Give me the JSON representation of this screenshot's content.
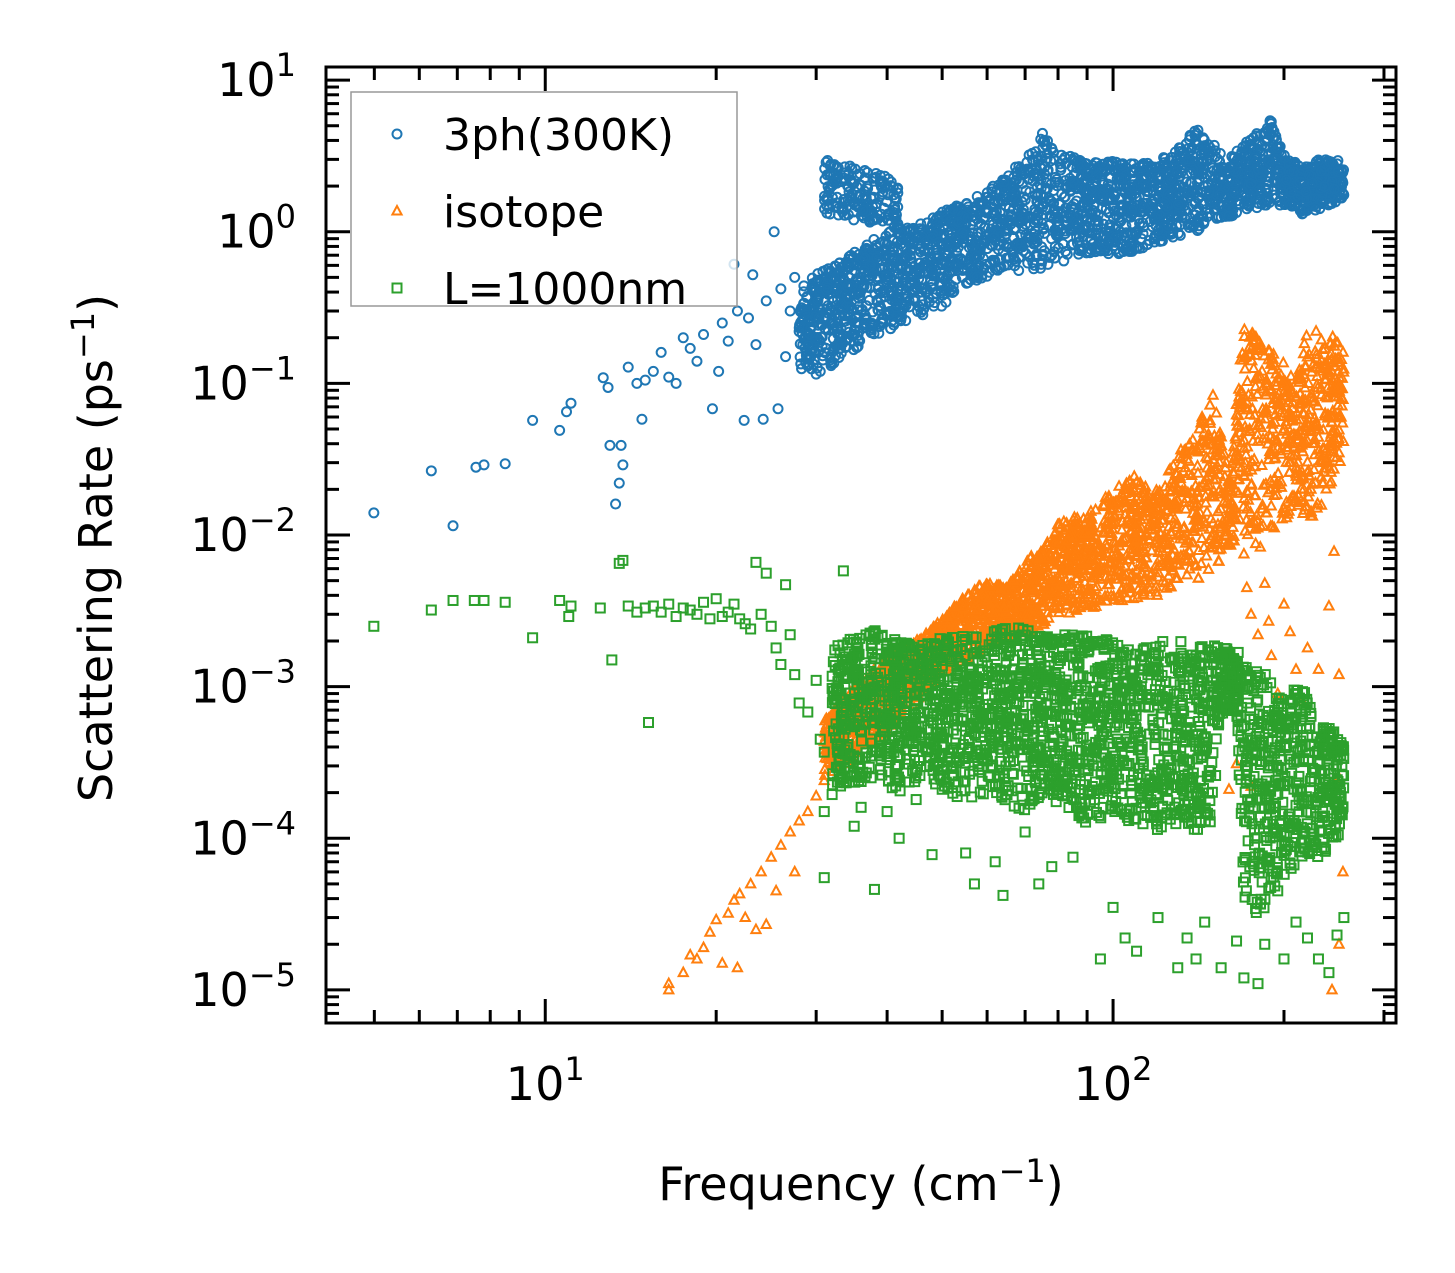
{
  "chart_data": {
    "type": "scatter",
    "title": "",
    "xlabel": "Frequency (cm",
    "xlabel_sup": "−1",
    "xlabel_end": ")",
    "ylabel": "Scattering Rate (ps",
    "ylabel_sup": "−1",
    "ylabel_end": ")",
    "xscale": "log",
    "yscale": "log",
    "xlim": [
      4.11,
      315
    ],
    "ylim": [
      6.05e-06,
      12.2
    ],
    "grid": false,
    "tick_direction": "in",
    "x_major_ticks": [
      {
        "value": 10,
        "base": "10",
        "exp": "1"
      },
      {
        "value": 100,
        "base": "10",
        "exp": "2"
      }
    ],
    "y_major_ticks": [
      {
        "value": 10,
        "base": "10",
        "exp": "1"
      },
      {
        "value": 1,
        "base": "10",
        "exp": "0"
      },
      {
        "value": 0.1,
        "base": "10",
        "exp": "−1"
      },
      {
        "value": 0.01,
        "base": "10",
        "exp": "−2"
      },
      {
        "value": 0.001,
        "base": "10",
        "exp": "−3"
      },
      {
        "value": 0.0001,
        "base": "10",
        "exp": "−4"
      },
      {
        "value": 1e-05,
        "base": "10",
        "exp": "−5"
      }
    ],
    "legend": {
      "placement": "top-left",
      "entries": [
        {
          "label": "3ph(300K)",
          "marker": "circle",
          "color": "#1f77b4"
        },
        {
          "label": "isotope",
          "marker": "triangle",
          "color": "#ff7f0e"
        },
        {
          "label": "L=1000nm",
          "marker": "square",
          "color": "#2ca02c"
        }
      ]
    },
    "series": [
      {
        "name": "3ph(300K)",
        "marker": "circle",
        "color": "#1f77b4",
        "points": [
          [
            4.99,
            0.014
          ],
          [
            6.3,
            0.0265
          ],
          [
            6.88,
            0.0115
          ],
          [
            7.55,
            0.028
          ],
          [
            7.8,
            0.029
          ],
          [
            8.5,
            0.0295
          ],
          [
            9.5,
            0.057
          ],
          [
            10.6,
            0.049
          ],
          [
            10.9,
            0.065
          ],
          [
            11.1,
            0.074
          ],
          [
            12.65,
            0.109
          ],
          [
            12.9,
            0.094
          ],
          [
            14.0,
            0.128
          ],
          [
            13.0,
            0.039
          ],
          [
            13.6,
            0.039
          ],
          [
            13.7,
            0.029
          ],
          [
            13.5,
            0.022
          ],
          [
            13.3,
            0.016
          ],
          [
            14.8,
            0.058
          ],
          [
            15.5,
            0.12
          ],
          [
            16.0,
            0.16
          ],
          [
            14.5,
            0.1
          ],
          [
            15.0,
            0.105
          ],
          [
            16.5,
            0.11
          ],
          [
            17.0,
            0.1
          ],
          [
            17.5,
            0.2
          ],
          [
            18.0,
            0.17
          ],
          [
            18.5,
            0.14
          ],
          [
            19.0,
            0.21
          ],
          [
            19.7,
            0.068
          ],
          [
            20.2,
            0.12
          ],
          [
            20.5,
            0.25
          ],
          [
            21.0,
            0.19
          ],
          [
            21.5,
            0.61
          ],
          [
            21.8,
            0.3
          ],
          [
            22.4,
            0.057
          ],
          [
            22.8,
            0.27
          ],
          [
            23.2,
            0.52
          ],
          [
            23.5,
            0.18
          ],
          [
            24.2,
            0.058
          ],
          [
            24.5,
            0.35
          ],
          [
            25.3,
            1.0
          ],
          [
            25.7,
            0.068
          ],
          [
            26.0,
            0.42
          ],
          [
            26.5,
            0.15
          ],
          [
            27.0,
            0.3
          ],
          [
            27.5,
            0.5
          ],
          [
            28.0,
            0.22
          ],
          [
            29.0,
            0.13
          ],
          [
            30.0,
            0.115
          ],
          [
            30.5,
            0.12
          ],
          [
            31.0,
            0.35
          ],
          [
            32.0,
            0.26
          ]
        ],
        "band_envelope": {
          "x": [
            28,
            32,
            36,
            40,
            45,
            50,
            55,
            60,
            65,
            70,
            75,
            80,
            90,
            100,
            110,
            120,
            130,
            140,
            150,
            160,
            170,
            180,
            190,
            200,
            215,
            230,
            250,
            255
          ],
          "lo": [
            0.12,
            0.13,
            0.18,
            0.22,
            0.27,
            0.32,
            0.45,
            0.5,
            0.55,
            0.55,
            0.52,
            0.62,
            0.72,
            0.7,
            0.75,
            0.85,
            0.9,
            1.0,
            1.2,
            1.2,
            1.35,
            1.4,
            1.45,
            1.5,
            1.3,
            1.4,
            1.6,
            1.6
          ],
          "hi": [
            0.45,
            0.6,
            0.8,
            1.0,
            1.1,
            1.35,
            1.6,
            1.9,
            2.4,
            3.0,
            4.5,
            3.5,
            2.8,
            3.0,
            2.8,
            2.9,
            3.6,
            4.8,
            3.8,
            3.0,
            3.8,
            4.6,
            5.5,
            3.2,
            2.7,
            3.0,
            3.0,
            2.6
          ]
        },
        "cluster": {
          "x": [
            31,
            42
          ],
          "y_center": [
            2.0,
            1.5
          ],
          "spread": 0.35
        }
      },
      {
        "name": "isotope",
        "marker": "triangle",
        "color": "#ff7f0e",
        "points": [
          [
            16.5,
            1e-05
          ],
          [
            16.5,
            1.1e-05
          ],
          [
            17.5,
            1.3e-05
          ],
          [
            18.0,
            1.7e-05
          ],
          [
            18.5,
            1.6e-05
          ],
          [
            19.0,
            1.9e-05
          ],
          [
            19.5,
            2.4e-05
          ],
          [
            20.0,
            2.9e-05
          ],
          [
            20.5,
            1.5e-05
          ],
          [
            21.0,
            3.2e-05
          ],
          [
            21.5,
            3.9e-05
          ],
          [
            21.8,
            1.4e-05
          ],
          [
            22.0,
            4.3e-05
          ],
          [
            22.5,
            3e-05
          ],
          [
            23.0,
            5e-05
          ],
          [
            23.5,
            2.5e-05
          ],
          [
            24.0,
            6e-05
          ],
          [
            24.5,
            2.7e-05
          ],
          [
            25.0,
            7.5e-05
          ],
          [
            25.5,
            4.5e-05
          ],
          [
            26.0,
            9e-05
          ],
          [
            27.0,
            0.00011
          ],
          [
            27.5,
            6e-05
          ],
          [
            28.0,
            0.00013
          ],
          [
            29.0,
            0.00015
          ],
          [
            30.0,
            0.00019
          ],
          [
            31.0,
            0.00024
          ],
          [
            170,
            0.0075
          ],
          [
            172,
            0.0045
          ],
          [
            175,
            0.003
          ],
          [
            180,
            0.0022
          ],
          [
            185,
            0.0048
          ],
          [
            188,
            0.0027
          ],
          [
            190,
            0.0016
          ],
          [
            195,
            0.0009
          ],
          [
            200,
            0.0035
          ],
          [
            205,
            0.0023
          ],
          [
            210,
            0.0013
          ],
          [
            215,
            0.0008
          ],
          [
            220,
            0.0018
          ],
          [
            230,
            0.0013
          ],
          [
            240,
            0.0034
          ],
          [
            245,
            0.0078
          ],
          [
            250,
            0.0012
          ],
          [
            250,
            0.00025
          ],
          [
            254,
            6e-05
          ],
          [
            250,
            2e-05
          ],
          [
            243,
            1e-05
          ],
          [
            160,
            0.00021
          ],
          [
            165,
            0.00031
          ],
          [
            175,
            0.00022
          ]
        ],
        "band_envelope": {
          "x": [
            31,
            34,
            37,
            40,
            45,
            50,
            55,
            60,
            65,
            70,
            75,
            80,
            90,
            100,
            110,
            120,
            130,
            140,
            150,
            160,
            170,
            180,
            190,
            200,
            210,
            220,
            230,
            240,
            250,
            255
          ],
          "lo": [
            0.00025,
            0.0003,
            0.0004,
            0.0005,
            0.0008,
            0.0012,
            0.0015,
            0.0018,
            0.0021,
            0.0022,
            0.0025,
            0.0028,
            0.0032,
            0.0035,
            0.0038,
            0.004,
            0.0045,
            0.005,
            0.006,
            0.008,
            0.01,
            0.008,
            0.01,
            0.012,
            0.015,
            0.012,
            0.014,
            0.02,
            0.03,
            0.03
          ],
          "hi": [
            0.0006,
            0.0009,
            0.0012,
            0.0016,
            0.002,
            0.0028,
            0.004,
            0.005,
            0.0045,
            0.007,
            0.008,
            0.012,
            0.014,
            0.02,
            0.025,
            0.02,
            0.035,
            0.05,
            0.09,
            0.025,
            0.25,
            0.2,
            0.16,
            0.15,
            0.1,
            0.24,
            0.22,
            0.18,
            0.25,
            0.15
          ]
        }
      },
      {
        "name": "L=1000nm",
        "marker": "square",
        "color": "#2ca02c",
        "points": [
          [
            4.99,
            0.0025
          ],
          [
            6.3,
            0.0032
          ],
          [
            6.88,
            0.0037
          ],
          [
            7.5,
            0.0037
          ],
          [
            7.8,
            0.0037
          ],
          [
            8.5,
            0.0036
          ],
          [
            9.5,
            0.0021
          ],
          [
            10.6,
            0.0037
          ],
          [
            11.1,
            0.0034
          ],
          [
            11.0,
            0.0029
          ],
          [
            12.5,
            0.0033
          ],
          [
            13.1,
            0.0015
          ],
          [
            13.7,
            0.0068
          ],
          [
            13.5,
            0.0065
          ],
          [
            15.2,
            0.00058
          ],
          [
            14.0,
            0.0034
          ],
          [
            14.5,
            0.0031
          ],
          [
            15.0,
            0.0033
          ],
          [
            15.5,
            0.0034
          ],
          [
            16.0,
            0.0031
          ],
          [
            16.5,
            0.0035
          ],
          [
            17.0,
            0.0029
          ],
          [
            17.5,
            0.0033
          ],
          [
            18.0,
            0.0032
          ],
          [
            18.5,
            0.003
          ],
          [
            19.0,
            0.0036
          ],
          [
            19.5,
            0.0028
          ],
          [
            20.0,
            0.0038
          ],
          [
            20.5,
            0.0029
          ],
          [
            21.0,
            0.0031
          ],
          [
            21.5,
            0.0035
          ],
          [
            22.0,
            0.0028
          ],
          [
            22.5,
            0.0026
          ],
          [
            23.0,
            0.0024
          ],
          [
            23.5,
            0.0066
          ],
          [
            24.0,
            0.003
          ],
          [
            24.5,
            0.0056
          ],
          [
            25.0,
            0.0025
          ],
          [
            25.5,
            0.0018
          ],
          [
            26.0,
            0.0014
          ],
          [
            26.5,
            0.0047
          ],
          [
            27.0,
            0.0022
          ],
          [
            27.5,
            0.0012
          ],
          [
            28.0,
            0.00078
          ],
          [
            29.0,
            0.00068
          ],
          [
            30.0,
            0.0011
          ],
          [
            30.5,
            0.00045
          ],
          [
            31.0,
            0.00037
          ],
          [
            31.0,
            0.00015
          ],
          [
            31.0,
            5.5e-05
          ],
          [
            33.5,
            0.0058
          ],
          [
            35.0,
            0.00012
          ],
          [
            36.0,
            0.00016
          ],
          [
            38.0,
            4.6e-05
          ],
          [
            40.0,
            0.00015
          ],
          [
            42.0,
            0.0001
          ],
          [
            45.0,
            0.00018
          ],
          [
            48.0,
            7.8e-05
          ],
          [
            55.0,
            8e-05
          ],
          [
            57.0,
            5e-05
          ],
          [
            62.0,
            7e-05
          ],
          [
            64.0,
            4.2e-05
          ],
          [
            70.0,
            0.00011
          ],
          [
            74.0,
            5e-05
          ],
          [
            78.0,
            6.5e-05
          ],
          [
            85.0,
            7.5e-05
          ],
          [
            95.0,
            1.6e-05
          ],
          [
            100.0,
            3.5e-05
          ],
          [
            105.0,
            2.2e-05
          ],
          [
            110.0,
            1.8e-05
          ],
          [
            120.0,
            3e-05
          ],
          [
            130.0,
            1.4e-05
          ],
          [
            135.0,
            2.2e-05
          ],
          [
            140.0,
            1.6e-05
          ],
          [
            145.0,
            2.8e-05
          ],
          [
            155.0,
            1.4e-05
          ],
          [
            165.0,
            2.1e-05
          ],
          [
            170.0,
            1.2e-05
          ],
          [
            180.0,
            1.1e-05
          ],
          [
            185.0,
            2e-05
          ],
          [
            195.0,
            4.5e-05
          ],
          [
            200.0,
            1.6e-05
          ],
          [
            210.0,
            2.8e-05
          ],
          [
            220.0,
            2.2e-05
          ],
          [
            230.0,
            1.6e-05
          ],
          [
            240.0,
            1.3e-05
          ],
          [
            248.0,
            2.3e-05
          ],
          [
            255.0,
            3e-05
          ]
        ],
        "band_envelope": {
          "x": [
            32,
            35,
            38,
            42,
            46,
            50,
            55,
            60,
            65,
            70,
            75,
            80,
            90,
            100,
            110,
            120,
            130,
            140,
            148,
            155,
            160,
            165,
            170,
            175,
            180,
            190,
            200,
            210,
            220,
            230,
            240,
            250,
            255
          ],
          "lo": [
            0.00018,
            0.00022,
            0.00025,
            0.0002,
            0.00025,
            0.0002,
            0.00018,
            0.0002,
            0.00017,
            0.00015,
            0.00018,
            0.00017,
            0.00012,
            0.00014,
            0.00012,
            0.00011,
            0.00012,
            0.00011,
            9e-05,
            0.0006,
            0.0007,
            0.0007,
            4e-05,
            4e-05,
            3e-05,
            4e-05,
            5e-05,
            6e-05,
            8e-05,
            7e-05,
            8e-05,
            0.0001,
            0.00015
          ],
          "hi": [
            0.0018,
            0.0022,
            0.0024,
            0.002,
            0.0019,
            0.0021,
            0.0022,
            0.0022,
            0.0025,
            0.0024,
            0.0022,
            0.0023,
            0.0022,
            0.002,
            0.0021,
            0.0021,
            0.002,
            0.0019,
            0.0019,
            0.0018,
            0.0018,
            0.0017,
            0.0017,
            0.0014,
            0.0013,
            0.0012,
            0.0008,
            0.001,
            0.0009,
            0.0005,
            0.0006,
            0.00045,
            0.0004
          ]
        }
      }
    ]
  }
}
